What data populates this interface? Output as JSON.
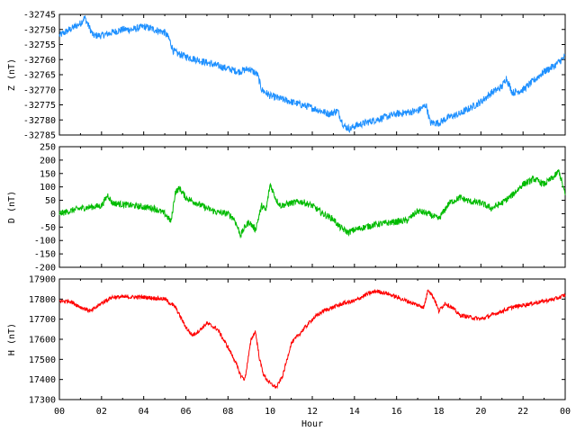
{
  "chart_data": [
    {
      "type": "line",
      "ylabel": "Z (nT)",
      "ylim": [
        -32785,
        -32745
      ],
      "yticks": [
        -32745,
        -32750,
        -32755,
        -32760,
        -32765,
        -32770,
        -32775,
        -32780,
        -32785
      ],
      "xlim": [
        0,
        24
      ],
      "color": "#1e90ff",
      "noise": 1.2,
      "series": [
        {
          "x": [
            0,
            0.5,
            1.0,
            1.2,
            1.4,
            1.6,
            2.0,
            2.5,
            3.0,
            3.5,
            4.0,
            4.5,
            5.0,
            5.2,
            5.4,
            5.6,
            6.0,
            6.5,
            7.0,
            7.5,
            8.0,
            8.5,
            9.0,
            9.4,
            9.6,
            10.0,
            11.0,
            12.0,
            12.8,
            13.2,
            13.5,
            13.8,
            14.0,
            15.0,
            16.0,
            17.0,
            17.4,
            17.6,
            18.0,
            18.5,
            19.0,
            19.5,
            20.0,
            20.5,
            21.0,
            21.2,
            21.5,
            22.0,
            22.5,
            23.0,
            23.5,
            24.0
          ],
          "y": [
            -32752,
            -32750,
            -32748,
            -32746,
            -32749,
            -32752,
            -32752,
            -32751,
            -32750,
            -32750,
            -32749,
            -32750,
            -32751,
            -32753,
            -32757,
            -32758,
            -32759,
            -32760,
            -32761,
            -32762,
            -32763,
            -32764,
            -32763,
            -32765,
            -32770,
            -32772,
            -32774,
            -32776,
            -32778,
            -32777,
            -32782,
            -32783,
            -32782,
            -32780,
            -32778,
            -32777,
            -32775,
            -32781,
            -32781,
            -32779,
            -32778,
            -32776,
            -32774,
            -32771,
            -32769,
            -32766,
            -32771,
            -32770,
            -32767,
            -32764,
            -32762,
            -32759
          ]
        }
      ]
    },
    {
      "type": "line",
      "ylabel": "D (nT)",
      "ylim": [
        -200,
        250
      ],
      "yticks": [
        250,
        200,
        150,
        100,
        50,
        0,
        -50,
        -100,
        -150,
        -200
      ],
      "xlim": [
        0,
        24
      ],
      "color": "#00bb00",
      "noise": 12,
      "series": [
        {
          "x": [
            0,
            0.5,
            1.0,
            1.5,
            2.0,
            2.3,
            2.5,
            3.0,
            3.5,
            4.0,
            4.5,
            5.0,
            5.3,
            5.5,
            5.7,
            6.0,
            6.5,
            7.0,
            7.5,
            8.0,
            8.3,
            8.6,
            8.8,
            9.0,
            9.3,
            9.6,
            9.8,
            10.0,
            10.3,
            10.5,
            11.0,
            11.5,
            12.0,
            12.5,
            13.0,
            13.3,
            13.7,
            14.0,
            15.0,
            16.0,
            16.5,
            17.0,
            17.5,
            18.0,
            18.5,
            19.0,
            19.5,
            20.0,
            20.5,
            21.0,
            21.5,
            22.0,
            22.3,
            22.5,
            23.0,
            23.5,
            23.7,
            24.0
          ],
          "y": [
            0,
            10,
            20,
            25,
            30,
            70,
            40,
            35,
            30,
            25,
            20,
            0,
            -30,
            80,
            95,
            60,
            40,
            20,
            5,
            0,
            -20,
            -80,
            -50,
            -30,
            -60,
            30,
            10,
            110,
            50,
            30,
            40,
            45,
            30,
            0,
            -20,
            -50,
            -70,
            -60,
            -40,
            -30,
            -25,
            10,
            0,
            -20,
            40,
            60,
            45,
            40,
            20,
            40,
            70,
            110,
            120,
            130,
            110,
            140,
            160,
            70
          ]
        }
      ]
    },
    {
      "type": "line",
      "ylabel": "H (nT)",
      "ylim": [
        17300,
        17900
      ],
      "yticks": [
        17900,
        17800,
        17700,
        17600,
        17500,
        17400,
        17300
      ],
      "xlim": [
        0,
        24
      ],
      "color": "#ff0000",
      "noise": 10,
      "xlabel": "Hour",
      "xticks": [
        "00",
        "02",
        "04",
        "06",
        "08",
        "10",
        "12",
        "14",
        "16",
        "18",
        "20",
        "22",
        "00"
      ],
      "series": [
        {
          "x": [
            0,
            0.5,
            1.0,
            1.5,
            2.0,
            2.5,
            3.0,
            4.0,
            5.0,
            5.5,
            6.0,
            6.3,
            6.6,
            7.0,
            7.5,
            8.0,
            8.3,
            8.6,
            8.8,
            9.1,
            9.3,
            9.5,
            9.7,
            10.0,
            10.3,
            10.6,
            11.0,
            11.5,
            12.0,
            12.5,
            13.0,
            13.5,
            14.0,
            14.5,
            15.0,
            15.5,
            16.0,
            16.5,
            17.0,
            17.3,
            17.5,
            17.8,
            18.0,
            18.3,
            18.6,
            19.0,
            19.5,
            20.0,
            20.5,
            21.0,
            21.5,
            22.0,
            22.5,
            23.0,
            23.5,
            24.0
          ],
          "y": [
            17790,
            17790,
            17760,
            17740,
            17780,
            17810,
            17810,
            17810,
            17800,
            17760,
            17660,
            17620,
            17640,
            17680,
            17650,
            17560,
            17500,
            17420,
            17400,
            17600,
            17640,
            17500,
            17420,
            17380,
            17360,
            17420,
            17580,
            17640,
            17700,
            17740,
            17760,
            17780,
            17790,
            17820,
            17840,
            17830,
            17810,
            17790,
            17770,
            17760,
            17850,
            17800,
            17740,
            17780,
            17760,
            17720,
            17710,
            17700,
            17720,
            17740,
            17760,
            17770,
            17780,
            17790,
            17800,
            17820
          ]
        }
      ]
    }
  ]
}
